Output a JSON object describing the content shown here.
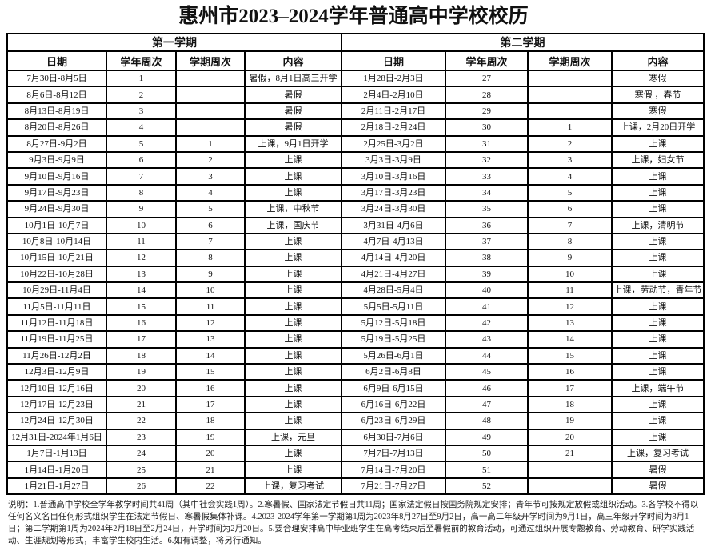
{
  "title": "惠州市2023–2024学年普通高中学校校历",
  "semesters": [
    "第一学期",
    "第二学期"
  ],
  "columns": [
    "日期",
    "学年周次",
    "学期周次",
    "内容"
  ],
  "rows": [
    [
      [
        "7月30日-8月5日",
        "1",
        "",
        "暑假，8月1日高三开学"
      ],
      [
        "1月28日-2月3日",
        "27",
        "",
        "寒假"
      ]
    ],
    [
      [
        "8月6日-8月12日",
        "2",
        "",
        "暑假"
      ],
      [
        "2月4日-2月10日",
        "28",
        "",
        "寒假 ，春节"
      ]
    ],
    [
      [
        "8月13日-8月19日",
        "3",
        "",
        "暑假"
      ],
      [
        "2月11日-2月17日",
        "29",
        "",
        "寒假"
      ]
    ],
    [
      [
        "8月20日-8月26日",
        "4",
        "",
        "暑假"
      ],
      [
        "2月18日-2月24日",
        "30",
        "1",
        "上课，2月20日开学"
      ]
    ],
    [
      [
        "8月27日-9月2日",
        "5",
        "1",
        "上课，9月1日开学"
      ],
      [
        "2月25日-3月2日",
        "31",
        "2",
        "上课"
      ]
    ],
    [
      [
        "9月3日-9月9日",
        "6",
        "2",
        "上课"
      ],
      [
        "3月3日-3月9日",
        "32",
        "3",
        "上课，妇女节"
      ]
    ],
    [
      [
        "9月10日-9月16日",
        "7",
        "3",
        "上课"
      ],
      [
        "3月10日-3月16日",
        "33",
        "4",
        "上课"
      ]
    ],
    [
      [
        "9月17日-9月23日",
        "8",
        "4",
        "上课"
      ],
      [
        "3月17日-3月23日",
        "34",
        "5",
        "上课"
      ]
    ],
    [
      [
        "9月24日-9月30日",
        "9",
        "5",
        "上课，中秋节"
      ],
      [
        "3月24日-3月30日",
        "35",
        "6",
        "上课"
      ]
    ],
    [
      [
        "10月1日-10月7日",
        "10",
        "6",
        "上课，国庆节"
      ],
      [
        "3月31日-4月6日",
        "36",
        "7",
        "上课，清明节"
      ]
    ],
    [
      [
        "10月8日-10月14日",
        "11",
        "7",
        "上课"
      ],
      [
        "4月7日-4月13日",
        "37",
        "8",
        "上课"
      ]
    ],
    [
      [
        "10月15日-10月21日",
        "12",
        "8",
        "上课"
      ],
      [
        "4月14日-4月20日",
        "38",
        "9",
        "上课"
      ]
    ],
    [
      [
        "10月22日-10月28日",
        "13",
        "9",
        "上课"
      ],
      [
        "4月21日-4月27日",
        "39",
        "10",
        "上课"
      ]
    ],
    [
      [
        "10月29日-11月4日",
        "14",
        "10",
        "上课"
      ],
      [
        "4月28日-5月4日",
        "40",
        "11",
        "上课，劳动节，青年节"
      ]
    ],
    [
      [
        "11月5日-11月11日",
        "15",
        "11",
        "上课"
      ],
      [
        "5月5日-5月11日",
        "41",
        "12",
        "上课"
      ]
    ],
    [
      [
        "11月12日-11月18日",
        "16",
        "12",
        "上课"
      ],
      [
        "5月12日-5月18日",
        "42",
        "13",
        "上课"
      ]
    ],
    [
      [
        "11月19日-11月25日",
        "17",
        "13",
        "上课"
      ],
      [
        "5月19日-5月25日",
        "43",
        "14",
        "上课"
      ]
    ],
    [
      [
        "11月26日-12月2日",
        "18",
        "14",
        "上课"
      ],
      [
        "5月26日-6月1日",
        "44",
        "15",
        "上课"
      ]
    ],
    [
      [
        "12月3日-12月9日",
        "19",
        "15",
        "上课"
      ],
      [
        "6月2日-6月8日",
        "45",
        "16",
        "上课"
      ]
    ],
    [
      [
        "12月10日-12月16日",
        "20",
        "16",
        "上课"
      ],
      [
        "6月9日-6月15日",
        "46",
        "17",
        "上课，端午节"
      ]
    ],
    [
      [
        "12月17日-12月23日",
        "21",
        "17",
        "上课"
      ],
      [
        "6月16日-6月22日",
        "47",
        "18",
        "上课"
      ]
    ],
    [
      [
        "12月24日-12月30日",
        "22",
        "18",
        "上课"
      ],
      [
        "6月23日-6月29日",
        "48",
        "19",
        "上课"
      ]
    ],
    [
      [
        "12月31日-2024年1月6日",
        "23",
        "19",
        "上课，元旦"
      ],
      [
        "6月30日-7月6日",
        "49",
        "20",
        "上课"
      ]
    ],
    [
      [
        "1月7日-1月13日",
        "24",
        "20",
        "上课"
      ],
      [
        "7月7日-7月13日",
        "50",
        "21",
        "上课，复习考试"
      ]
    ],
    [
      [
        "1月14日-1月20日",
        "25",
        "21",
        "上课"
      ],
      [
        "7月14日-7月20日",
        "51",
        "",
        "暑假"
      ]
    ],
    [
      [
        "1月21日-1月27日",
        "26",
        "22",
        "上课，复习考试"
      ],
      [
        "7月21日-7月27日",
        "52",
        "",
        "暑假"
      ]
    ]
  ],
  "note": "说明：1.普通高中学校全学年教学时间共41周（其中社会实践1周）。2.寒暑假、国家法定节假日共11周；国家法定假日按国务院规定安排；青年节可按规定放假或组织活动。3.各学校不得以任何名义名目任何形式组织学生在法定节假日、寒暑假集体补课。4.2023-2024学年第一学期第1周为2023年8月27日至9月2日，高一高二年级开学时间为9月1日，高三年级开学时间为8月1日；第二学期第1周为2024年2月18日至2月24日，开学时间为2月20日。5.要合理安排高中毕业班学生在高考结束后至暑假前的教育活动，可通过组织开展专题教育、劳动教育、研学实践活动、生涯规划等形式，丰富学生校内生活。6.如有调整，将另行通知。"
}
